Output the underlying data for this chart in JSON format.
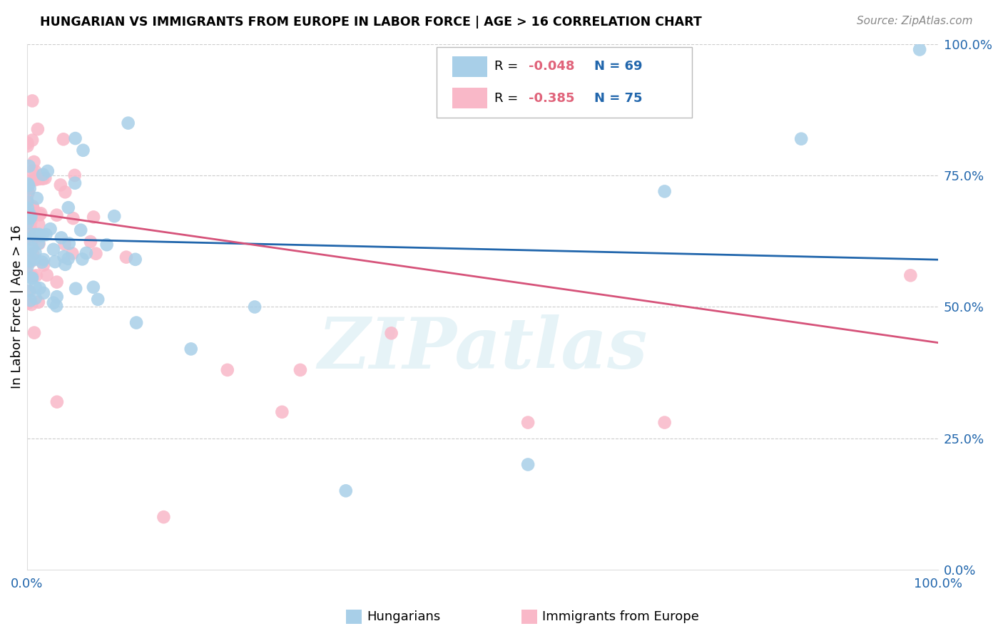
{
  "title": "HUNGARIAN VS IMMIGRANTS FROM EUROPE IN LABOR FORCE | AGE > 16 CORRELATION CHART",
  "source": "Source: ZipAtlas.com",
  "ylabel": "In Labor Force | Age > 16",
  "legend_blue_label": "Hungarians",
  "legend_pink_label": "Immigrants from Europe",
  "blue_color": "#a8cfe8",
  "pink_color": "#f9b8c8",
  "blue_line_color": "#2166ac",
  "pink_line_color": "#d6537a",
  "watermark": "ZIPatlas",
  "blue_R": -0.048,
  "blue_N": 69,
  "pink_R": -0.385,
  "pink_N": 75,
  "blue_intercept": 0.63,
  "blue_slope": -0.04,
  "pink_intercept": 0.68,
  "pink_slope": -0.248,
  "right_yticklabels": [
    "0.0%",
    "25.0%",
    "50.0%",
    "75.0%",
    "100.0%"
  ],
  "right_yticks": [
    0.0,
    0.25,
    0.5,
    0.75,
    1.0
  ],
  "xtick_color": "#2166ac",
  "ytick_color": "#2166ac",
  "grid_color": "#cccccc",
  "background_color": "#ffffff"
}
